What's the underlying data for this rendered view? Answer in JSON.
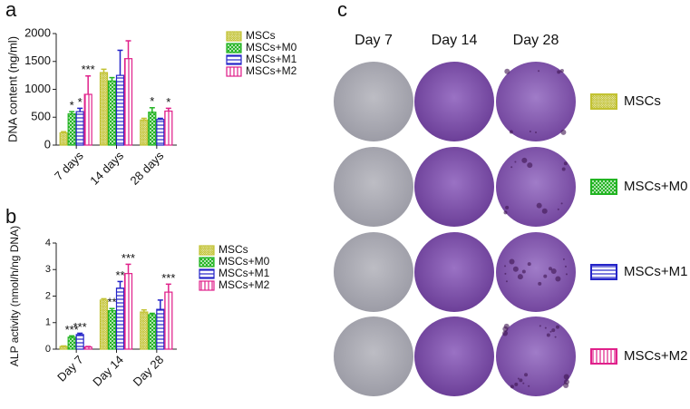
{
  "chart_data": [
    {
      "type": "bar",
      "panel_label": "a",
      "y_label": "DNA content (ng/ml)",
      "categories": [
        "7 days",
        "14 days",
        "28 days"
      ],
      "ylim": [
        0,
        2000
      ],
      "yticks": [
        0,
        500,
        1000,
        1500,
        2000
      ],
      "series": [
        {
          "name": "MSCs",
          "color": "#c2c232",
          "values": [
            220,
            1300,
            450
          ],
          "errors": [
            20,
            60,
            30
          ],
          "stars": [
            null,
            null,
            null
          ]
        },
        {
          "name": "MSCs+M0",
          "color": "#22b422",
          "values": [
            560,
            1150,
            590
          ],
          "errors": [
            40,
            60,
            80
          ],
          "stars": [
            "*",
            null,
            "*"
          ]
        },
        {
          "name": "MSCs+M1",
          "color": "#2424c8",
          "values": [
            600,
            1250,
            460
          ],
          "errors": [
            60,
            450,
            20
          ],
          "stars": [
            "*",
            null,
            null
          ]
        },
        {
          "name": "MSCs+M2",
          "color": "#e0208a",
          "values": [
            910,
            1550,
            610
          ],
          "errors": [
            330,
            320,
            50
          ],
          "stars": [
            "***",
            null,
            "*"
          ]
        }
      ]
    },
    {
      "type": "bar",
      "panel_label": "b",
      "y_label": "ALP activity (nmol/h/ng DNA)",
      "categories": [
        "Day 7",
        "Day 14",
        "Day 28"
      ],
      "ylim": [
        0,
        4
      ],
      "yticks": [
        0,
        1,
        2,
        3,
        4
      ],
      "series": [
        {
          "name": "MSCs",
          "color": "#c2c232",
          "values": [
            0.1,
            1.85,
            1.4
          ],
          "errors": [
            0.02,
            0.05,
            0.08
          ],
          "stars": [
            null,
            null,
            null
          ]
        },
        {
          "name": "MSCs+M0",
          "color": "#22b422",
          "values": [
            0.45,
            1.45,
            1.3
          ],
          "errors": [
            0.05,
            0.08,
            0.05
          ],
          "stars": [
            "***",
            "**",
            null
          ]
        },
        {
          "name": "MSCs+M1",
          "color": "#2424c8",
          "values": [
            0.55,
            2.3,
            1.5
          ],
          "errors": [
            0.05,
            0.25,
            0.35
          ],
          "stars": [
            "***",
            "**",
            null
          ]
        },
        {
          "name": "MSCs+M2",
          "color": "#e0208a",
          "values": [
            0.08,
            2.85,
            2.15
          ],
          "errors": [
            0.02,
            0.35,
            0.3
          ],
          "stars": [
            null,
            "***",
            "***"
          ]
        }
      ]
    }
  ],
  "panel_c": {
    "panel_label": "c",
    "columns": [
      "Day 7",
      "Day 14",
      "Day 28"
    ],
    "legend": [
      "MSCs",
      "MSCs+M0",
      "MSCs+M1",
      "MSCs+M2"
    ]
  }
}
